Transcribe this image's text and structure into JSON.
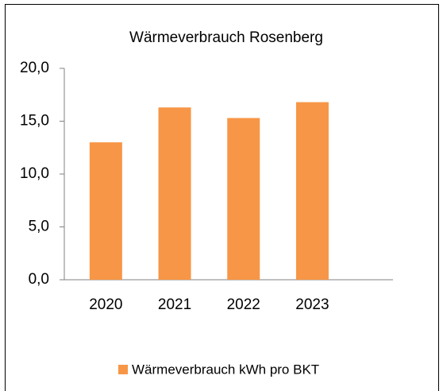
{
  "chart_data": {
    "type": "bar",
    "title": "Wärmeverbrauch Rosenberg",
    "categories": [
      "2020",
      "2021",
      "2022",
      "2023"
    ],
    "series": [
      {
        "name": "Wärmeverbrauch kWh pro BKT",
        "color": "#f79646",
        "values": [
          13.0,
          16.3,
          15.3,
          16.8
        ]
      }
    ],
    "ylim": [
      0,
      20
    ],
    "yticks": [
      {
        "value": 0,
        "label": "0,0"
      },
      {
        "value": 5,
        "label": "5,0"
      },
      {
        "value": 10,
        "label": "10,0"
      },
      {
        "value": 15,
        "label": "15,0"
      },
      {
        "value": 20,
        "label": "20,0"
      }
    ],
    "legend": "bottom"
  }
}
